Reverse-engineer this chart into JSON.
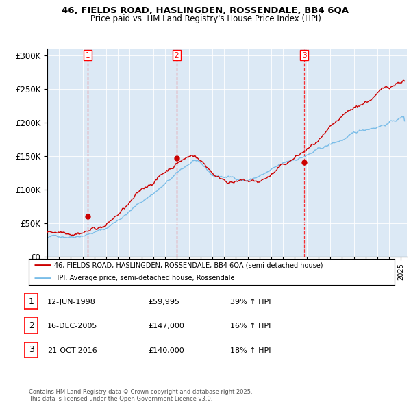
{
  "title_line1": "46, FIELDS ROAD, HASLINGDEN, ROSSENDALE, BB4 6QA",
  "title_line2": "Price paid vs. HM Land Registry's House Price Index (HPI)",
  "ylim": [
    0,
    310000
  ],
  "yticks": [
    0,
    50000,
    100000,
    150000,
    200000,
    250000,
    300000
  ],
  "ytick_labels": [
    "£0",
    "£50K",
    "£100K",
    "£150K",
    "£200K",
    "£250K",
    "£300K"
  ],
  "hpi_color": "#7abde8",
  "price_color": "#cc0000",
  "sale_dates": [
    1998.45,
    2005.96,
    2016.8
  ],
  "sale_prices": [
    59995,
    147000,
    140000
  ],
  "sale_labels": [
    "1",
    "2",
    "3"
  ],
  "legend_label1": "46, FIELDS ROAD, HASLINGDEN, ROSSENDALE, BB4 6QA (semi-detached house)",
  "legend_label2": "HPI: Average price, semi-detached house, Rossendale",
  "table_rows": [
    [
      "1",
      "12-JUN-1998",
      "£59,995",
      "39% ↑ HPI"
    ],
    [
      "2",
      "16-DEC-2005",
      "£147,000",
      "16% ↑ HPI"
    ],
    [
      "3",
      "21-OCT-2016",
      "£140,000",
      "18% ↑ HPI"
    ]
  ],
  "footnote": "Contains HM Land Registry data © Crown copyright and database right 2025.\nThis data is licensed under the Open Government Licence v3.0.",
  "plot_bg_color": "#dce9f5"
}
